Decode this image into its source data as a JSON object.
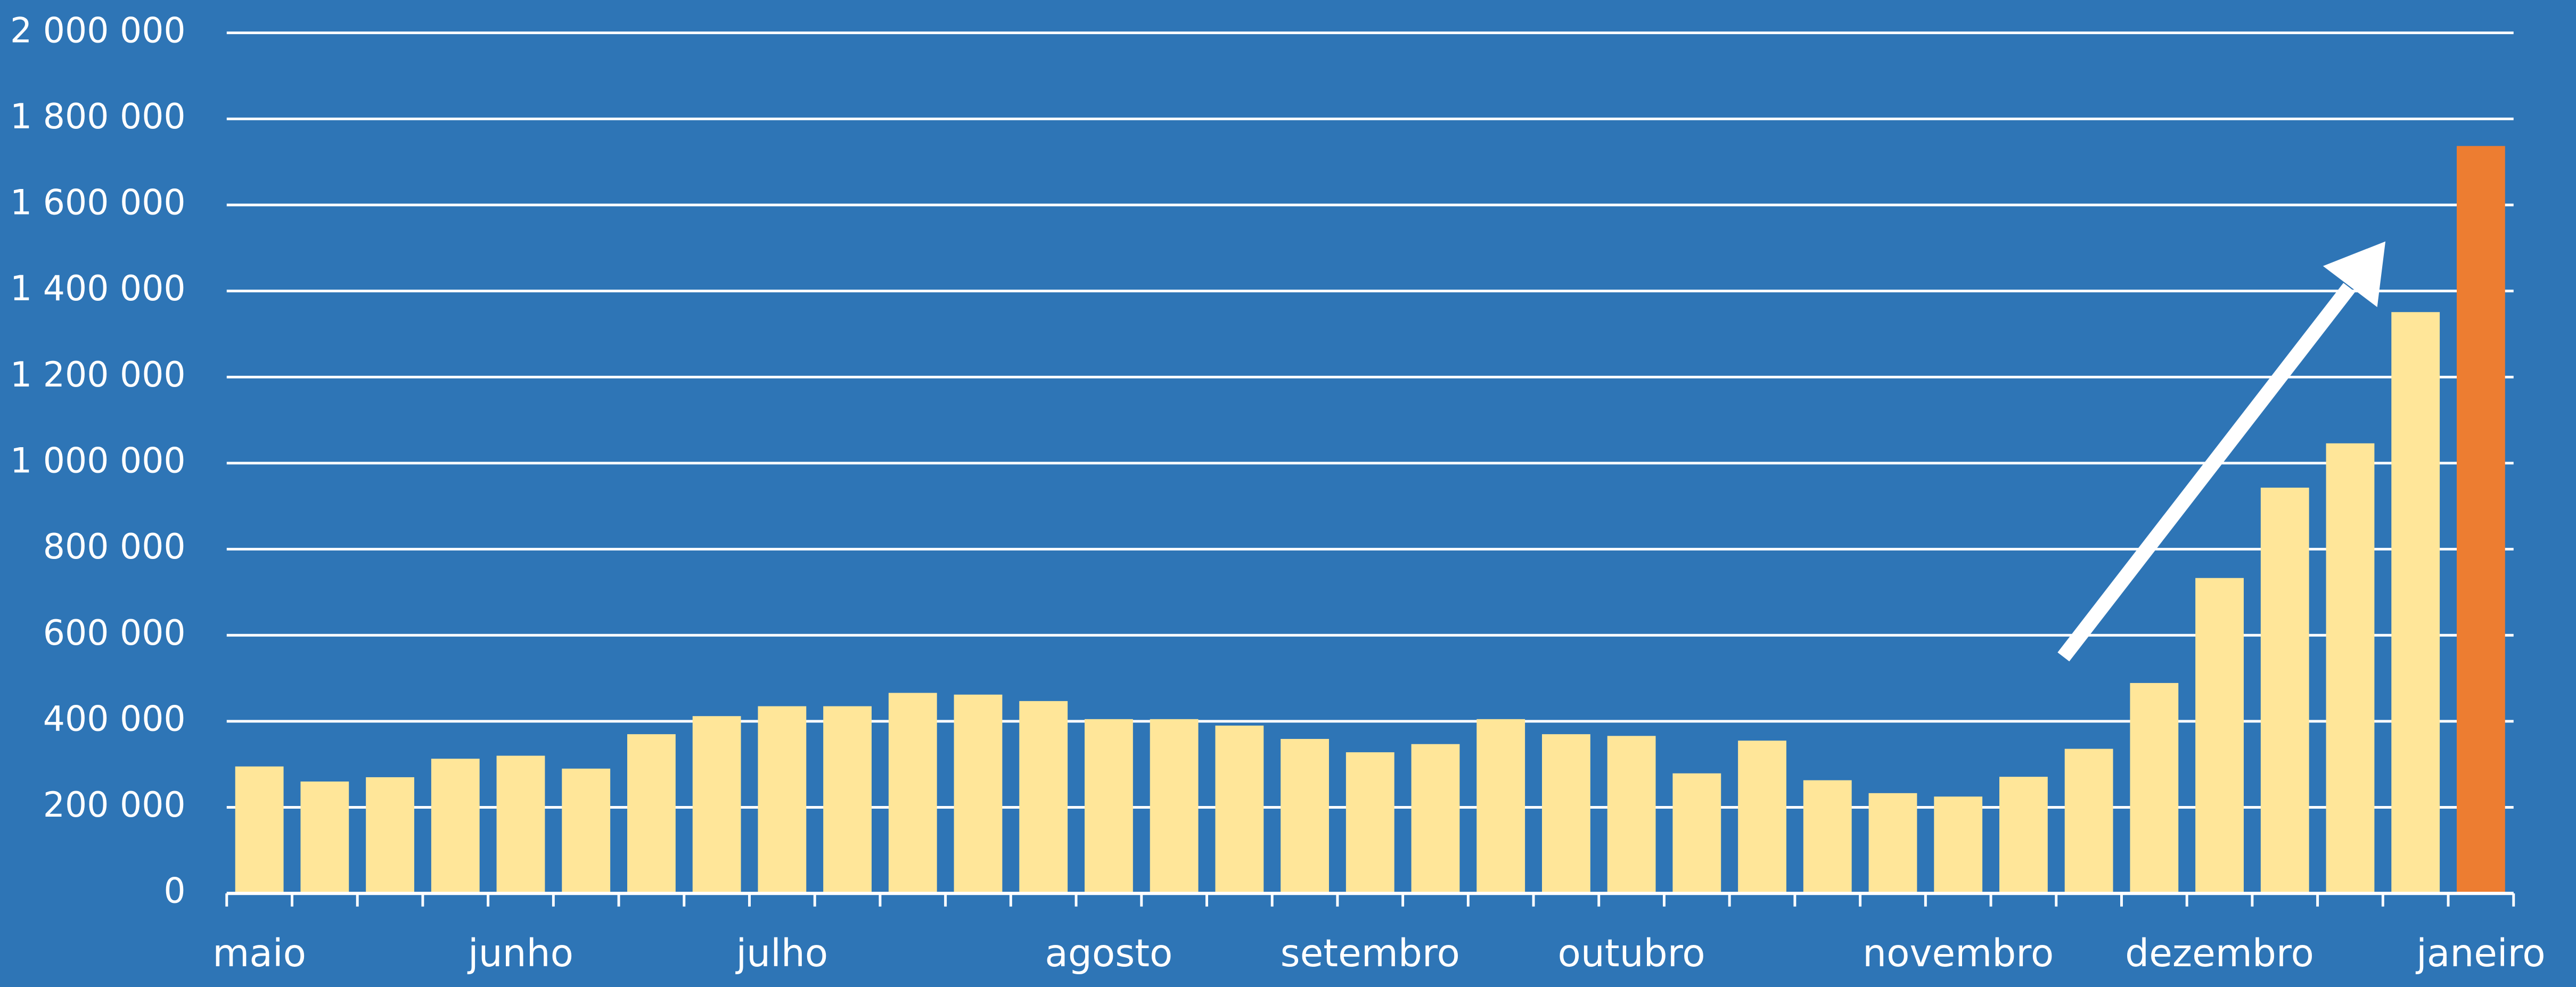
{
  "chart_data": {
    "type": "bar",
    "categories": [
      "maio",
      null,
      null,
      null,
      "junho",
      null,
      null,
      null,
      "julho",
      null,
      null,
      null,
      null,
      "agosto",
      null,
      null,
      null,
      "setembro",
      null,
      null,
      null,
      "outubro",
      null,
      null,
      null,
      null,
      "novembro",
      null,
      null,
      null,
      "dezembro",
      null,
      null,
      null,
      "janeiro"
    ],
    "values": [
      295000,
      260000,
      270000,
      313000,
      320000,
      290000,
      370000,
      412000,
      435000,
      435000,
      466000,
      462000,
      447000,
      405000,
      405000,
      390000,
      359000,
      328000,
      347000,
      405000,
      370000,
      366000,
      279000,
      355000,
      263000,
      233000,
      225000,
      271000,
      336000,
      489000,
      733000,
      943000,
      1046000,
      1351000,
      1737000
    ],
    "colors": [
      "#ffe699",
      "#ffe699",
      "#ffe699",
      "#ffe699",
      "#ffe699",
      "#ffe699",
      "#ffe699",
      "#ffe699",
      "#ffe699",
      "#ffe699",
      "#ffe699",
      "#ffe699",
      "#ffe699",
      "#ffe699",
      "#ffe699",
      "#ffe699",
      "#ffe699",
      "#ffe699",
      "#ffe699",
      "#ffe699",
      "#ffe699",
      "#ffe699",
      "#ffe699",
      "#ffe699",
      "#ffe699",
      "#ffe699",
      "#ffe699",
      "#ffe699",
      "#ffe699",
      "#ffe699",
      "#ffe699",
      "#ffe699",
      "#ffe699",
      "#ffe699",
      "#ed7d31"
    ],
    "ylim": [
      0,
      2000000
    ],
    "yticks": [
      0,
      {
        "value": 200000,
        "label": "200 000"
      },
      {
        "value": 400000,
        "label": "400 000"
      },
      {
        "value": 600000,
        "label": "600 000"
      },
      {
        "value": 800000,
        "label": "800 000"
      },
      {
        "value": 1000000,
        "label": "1 000 000"
      },
      {
        "value": 1200000,
        "label": "1 200 000"
      },
      {
        "value": 1400000,
        "label": "1 400 000"
      },
      {
        "value": 1600000,
        "label": "1 600 000"
      },
      {
        "value": 1800000,
        "label": "1 800 000"
      },
      {
        "value": 2000000,
        "label": "2 000 000"
      }
    ],
    "grid": true
  }
}
